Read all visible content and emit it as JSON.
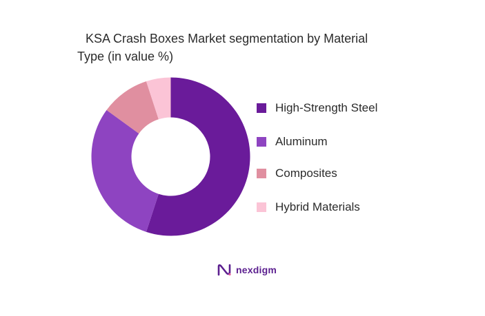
{
  "chart_data": {
    "type": "pie",
    "title": "KSA Crash Boxes Market segmentation by Material Type (in value %)",
    "title_lines": [
      "KSA Crash Boxes Market segmentation by Material",
      "Type (in value %)"
    ],
    "donut": true,
    "categories": [
      "High-Strength Steel",
      "Aluminum",
      "Composites",
      "Hybrid Materials"
    ],
    "values": [
      55,
      30,
      10,
      5
    ],
    "colors": [
      "#6a1b9a",
      "#8e44c1",
      "#e08fa0",
      "#fbc4d6"
    ],
    "legend_position": "right"
  },
  "brand": {
    "name": "nexdigm",
    "color": "#5b1f8f"
  }
}
